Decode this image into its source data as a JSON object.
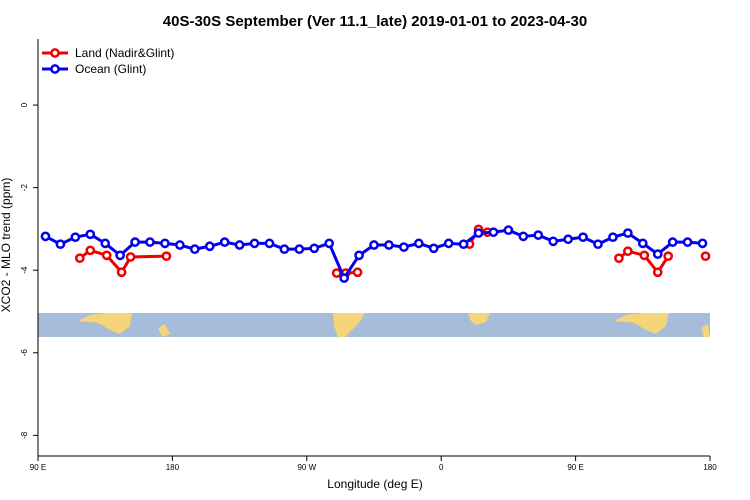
{
  "chart_data": {
    "type": "line",
    "title": "40S-30S September (Ver 11.1_late)   2019-01-01 to 2023-04-30",
    "x_label": "Longitude (deg E)",
    "y_label": "XCO2 - MLO trend (ppm)",
    "xlim": [
      90,
      540
    ],
    "ylim": [
      -8.5,
      1.6
    ],
    "xticks": [
      {
        "value": 90,
        "label": "90 E"
      },
      180,
      {
        "value": 270,
        "label": "90 W"
      },
      {
        "value": 360,
        "label": "0"
      },
      {
        "value": 450,
        "label": "90 E"
      },
      {
        "value": 540,
        "label": "180"
      }
    ],
    "yticks": [
      0,
      -2,
      -4,
      -6,
      -8
    ],
    "legend": "top-left",
    "series": [
      {
        "name": "Land (Nadir&Glint)",
        "color": "#ee0000",
        "x": [
          118,
          125,
          136,
          146,
          152,
          176,
          null,
          290,
          296,
          304,
          null,
          379,
          385,
          391,
          null,
          479,
          485,
          496,
          505,
          512,
          null,
          537
        ],
        "values": [
          -3.71,
          -3.52,
          -3.64,
          -4.05,
          -3.68,
          -3.66,
          null,
          -4.07,
          -4.07,
          -4.05,
          null,
          -3.37,
          -3.01,
          -3.08,
          null,
          -3.71,
          -3.54,
          -3.64,
          -4.05,
          -3.66,
          null,
          -3.66
        ]
      },
      {
        "name": "Ocean (Glint)",
        "color": "#0000ee",
        "x": [
          95,
          105,
          115,
          125,
          135,
          145,
          155,
          165,
          175,
          185,
          195,
          205,
          215,
          225,
          235,
          245,
          255,
          265,
          275,
          285,
          295,
          305,
          315,
          325,
          335,
          345,
          355,
          365,
          375,
          385,
          395,
          405,
          415,
          425,
          435,
          445,
          455,
          465,
          475,
          485,
          495,
          505,
          515,
          525,
          535
        ],
        "values": [
          -3.18,
          -3.37,
          -3.2,
          -3.13,
          -3.35,
          -3.64,
          -3.32,
          -3.32,
          -3.35,
          -3.39,
          -3.49,
          -3.42,
          -3.32,
          -3.39,
          -3.35,
          -3.35,
          -3.49,
          -3.49,
          -3.47,
          -3.35,
          -4.19,
          -3.64,
          -3.39,
          -3.39,
          -3.44,
          -3.35,
          -3.47,
          -3.35,
          -3.37,
          -3.1,
          -3.08,
          -3.03,
          -3.18,
          -3.15,
          -3.3,
          -3.25,
          -3.2,
          -3.37,
          -3.2,
          -3.1,
          -3.35,
          -3.61,
          -3.32,
          -3.32,
          -3.35
        ]
      }
    ]
  }
}
